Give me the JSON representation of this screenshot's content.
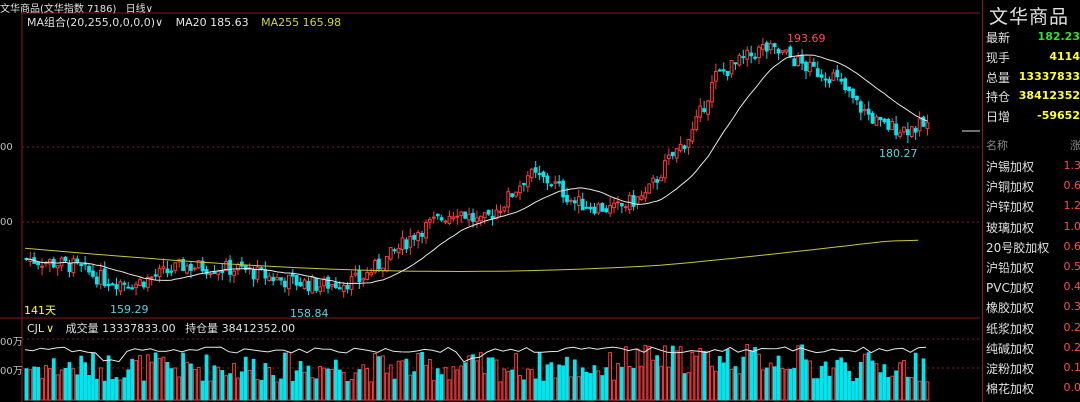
{
  "header": {
    "title": "文华商品(文华指数 7186)",
    "period": "日线",
    "dropdown": "∨"
  },
  "indicators": {
    "ma_group": "MA组合(20,255,0,0,0,0)",
    "ma_group_arrow": "∨",
    "ma20": "MA20 185.63",
    "ma255": "MA255 165.98"
  },
  "annotations": {
    "high": "193.69",
    "recent_low": "180.27",
    "low1": "159.29",
    "low2": "158.84",
    "days": "141天"
  },
  "axis_left": {
    "upper": "00",
    "middle": "00",
    "vol_top": "00万",
    "vol_mid": "00万"
  },
  "volume_panel": {
    "name": "CJL",
    "arrow": "∨",
    "volume": "成交量 13337833.00",
    "open_interest": "持仓量 38412352.00"
  },
  "sidebar": {
    "title": "文华商品",
    "quote": [
      {
        "k": "最新",
        "v": "182.23",
        "color": "#33dd33"
      },
      {
        "k": "现手",
        "v": "4114",
        "color": "#ffff33"
      },
      {
        "k": "总量",
        "v": "13337833",
        "color": "#ffff33"
      },
      {
        "k": "持仓",
        "v": "38412352",
        "color": "#ffff33"
      },
      {
        "k": "日增",
        "v": "-59652",
        "color": "#ffff33"
      }
    ],
    "list_header": {
      "name": "名称",
      "change": "涨"
    },
    "list": [
      {
        "name": "沪锡加权",
        "pct": "1.3"
      },
      {
        "name": "沪铜加权",
        "pct": "0.6"
      },
      {
        "name": "沪锌加权",
        "pct": "1.2"
      },
      {
        "name": "玻璃加权",
        "pct": "1.0"
      },
      {
        "name": "20号胶加权",
        "pct": "0.6"
      },
      {
        "name": "沪铅加权",
        "pct": "0.5"
      },
      {
        "name": "PVC加权",
        "pct": "0.4"
      },
      {
        "name": "橡胶加权",
        "pct": "0.3"
      },
      {
        "name": "纸浆加权",
        "pct": "0.2"
      },
      {
        "name": "纯碱加权",
        "pct": "0.2"
      },
      {
        "name": "淀粉加权",
        "pct": "0.1"
      },
      {
        "name": "棉花加权",
        "pct": "0.0"
      }
    ]
  },
  "colors": {
    "up": "#ff3a3a",
    "down": "#00e5ee",
    "ma20": "#e8e8e8",
    "ma255": "#c8c83a",
    "grid": "#8b1a1a"
  },
  "chart_data": {
    "type": "candlestick",
    "title": "",
    "price_range": [
      155,
      197
    ],
    "series": [
      {
        "name": "MA20",
        "current": 185.63
      },
      {
        "name": "MA255",
        "current": 165.98
      }
    ],
    "labels": {
      "high": 193.69,
      "recent_low": 180.27,
      "low1": 159.29,
      "low2": 158.84
    },
    "last_price": 182.23,
    "volume": 13337833,
    "open_interest": 38412352
  }
}
